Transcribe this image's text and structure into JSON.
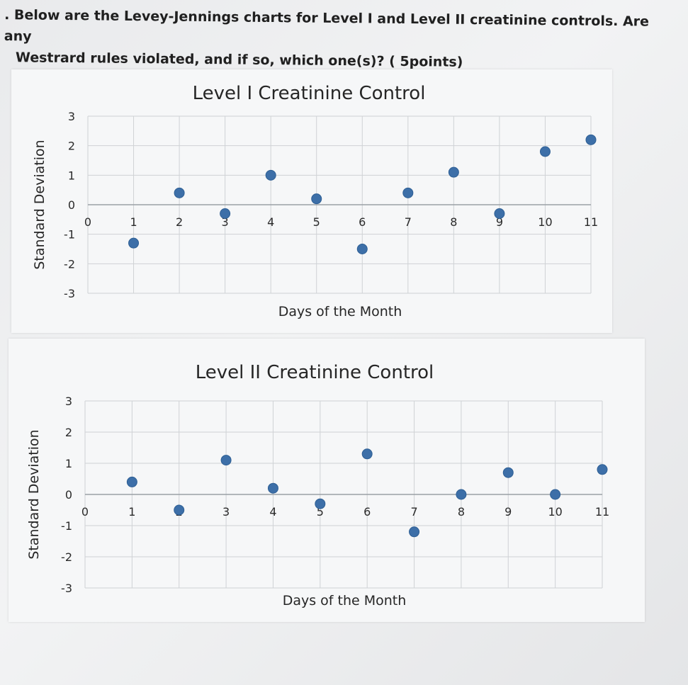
{
  "question": {
    "line1": ". Below are the Levey-Jennings charts for Level I and Level II creatinine controls. Are any",
    "line2": "Westrard rules violated, and if so, which one(s)? ( 5points)"
  },
  "colors": {
    "point": "#3d6fa8",
    "grid": "#cfd2d5",
    "axis": "#9aa0a5"
  },
  "chart_data": [
    {
      "type": "scatter",
      "title": "Level I Creatinine Control",
      "xlabel": "Days of the Month",
      "ylabel": "Standard Deviation",
      "x_ticks": [
        "0",
        "1",
        "2",
        "3",
        "4",
        "5",
        "6",
        "7",
        "8",
        "9",
        "10",
        "11"
      ],
      "y_ticks": [
        "3",
        "2",
        "1",
        "0",
        "-1",
        "-2",
        "-3"
      ],
      "xlim": [
        0,
        11
      ],
      "ylim": [
        -3,
        3
      ],
      "grid": true,
      "x": [
        1,
        2,
        3,
        4,
        5,
        6,
        7,
        8,
        9,
        10,
        11
      ],
      "y": [
        -1.3,
        0.4,
        -0.3,
        1.0,
        0.2,
        -1.5,
        0.4,
        1.1,
        -0.3,
        1.8,
        2.2
      ]
    },
    {
      "type": "scatter",
      "title": "Level II Creatinine Control",
      "xlabel": "Days of the Month",
      "ylabel": "Standard Deviation",
      "x_ticks": [
        "0",
        "1",
        "2",
        "3",
        "4",
        "5",
        "6",
        "7",
        "8",
        "9",
        "10",
        "11"
      ],
      "y_ticks": [
        "3",
        "2",
        "1",
        "0",
        "-1",
        "-2",
        "-3"
      ],
      "xlim": [
        0,
        11
      ],
      "ylim": [
        -3,
        3
      ],
      "grid": true,
      "x": [
        1,
        2,
        3,
        4,
        5,
        6,
        7,
        8,
        9,
        10,
        11
      ],
      "y": [
        0.4,
        -0.5,
        1.1,
        0.2,
        -0.3,
        1.3,
        -1.2,
        0.0,
        0.7,
        0.0,
        0.8
      ]
    }
  ]
}
